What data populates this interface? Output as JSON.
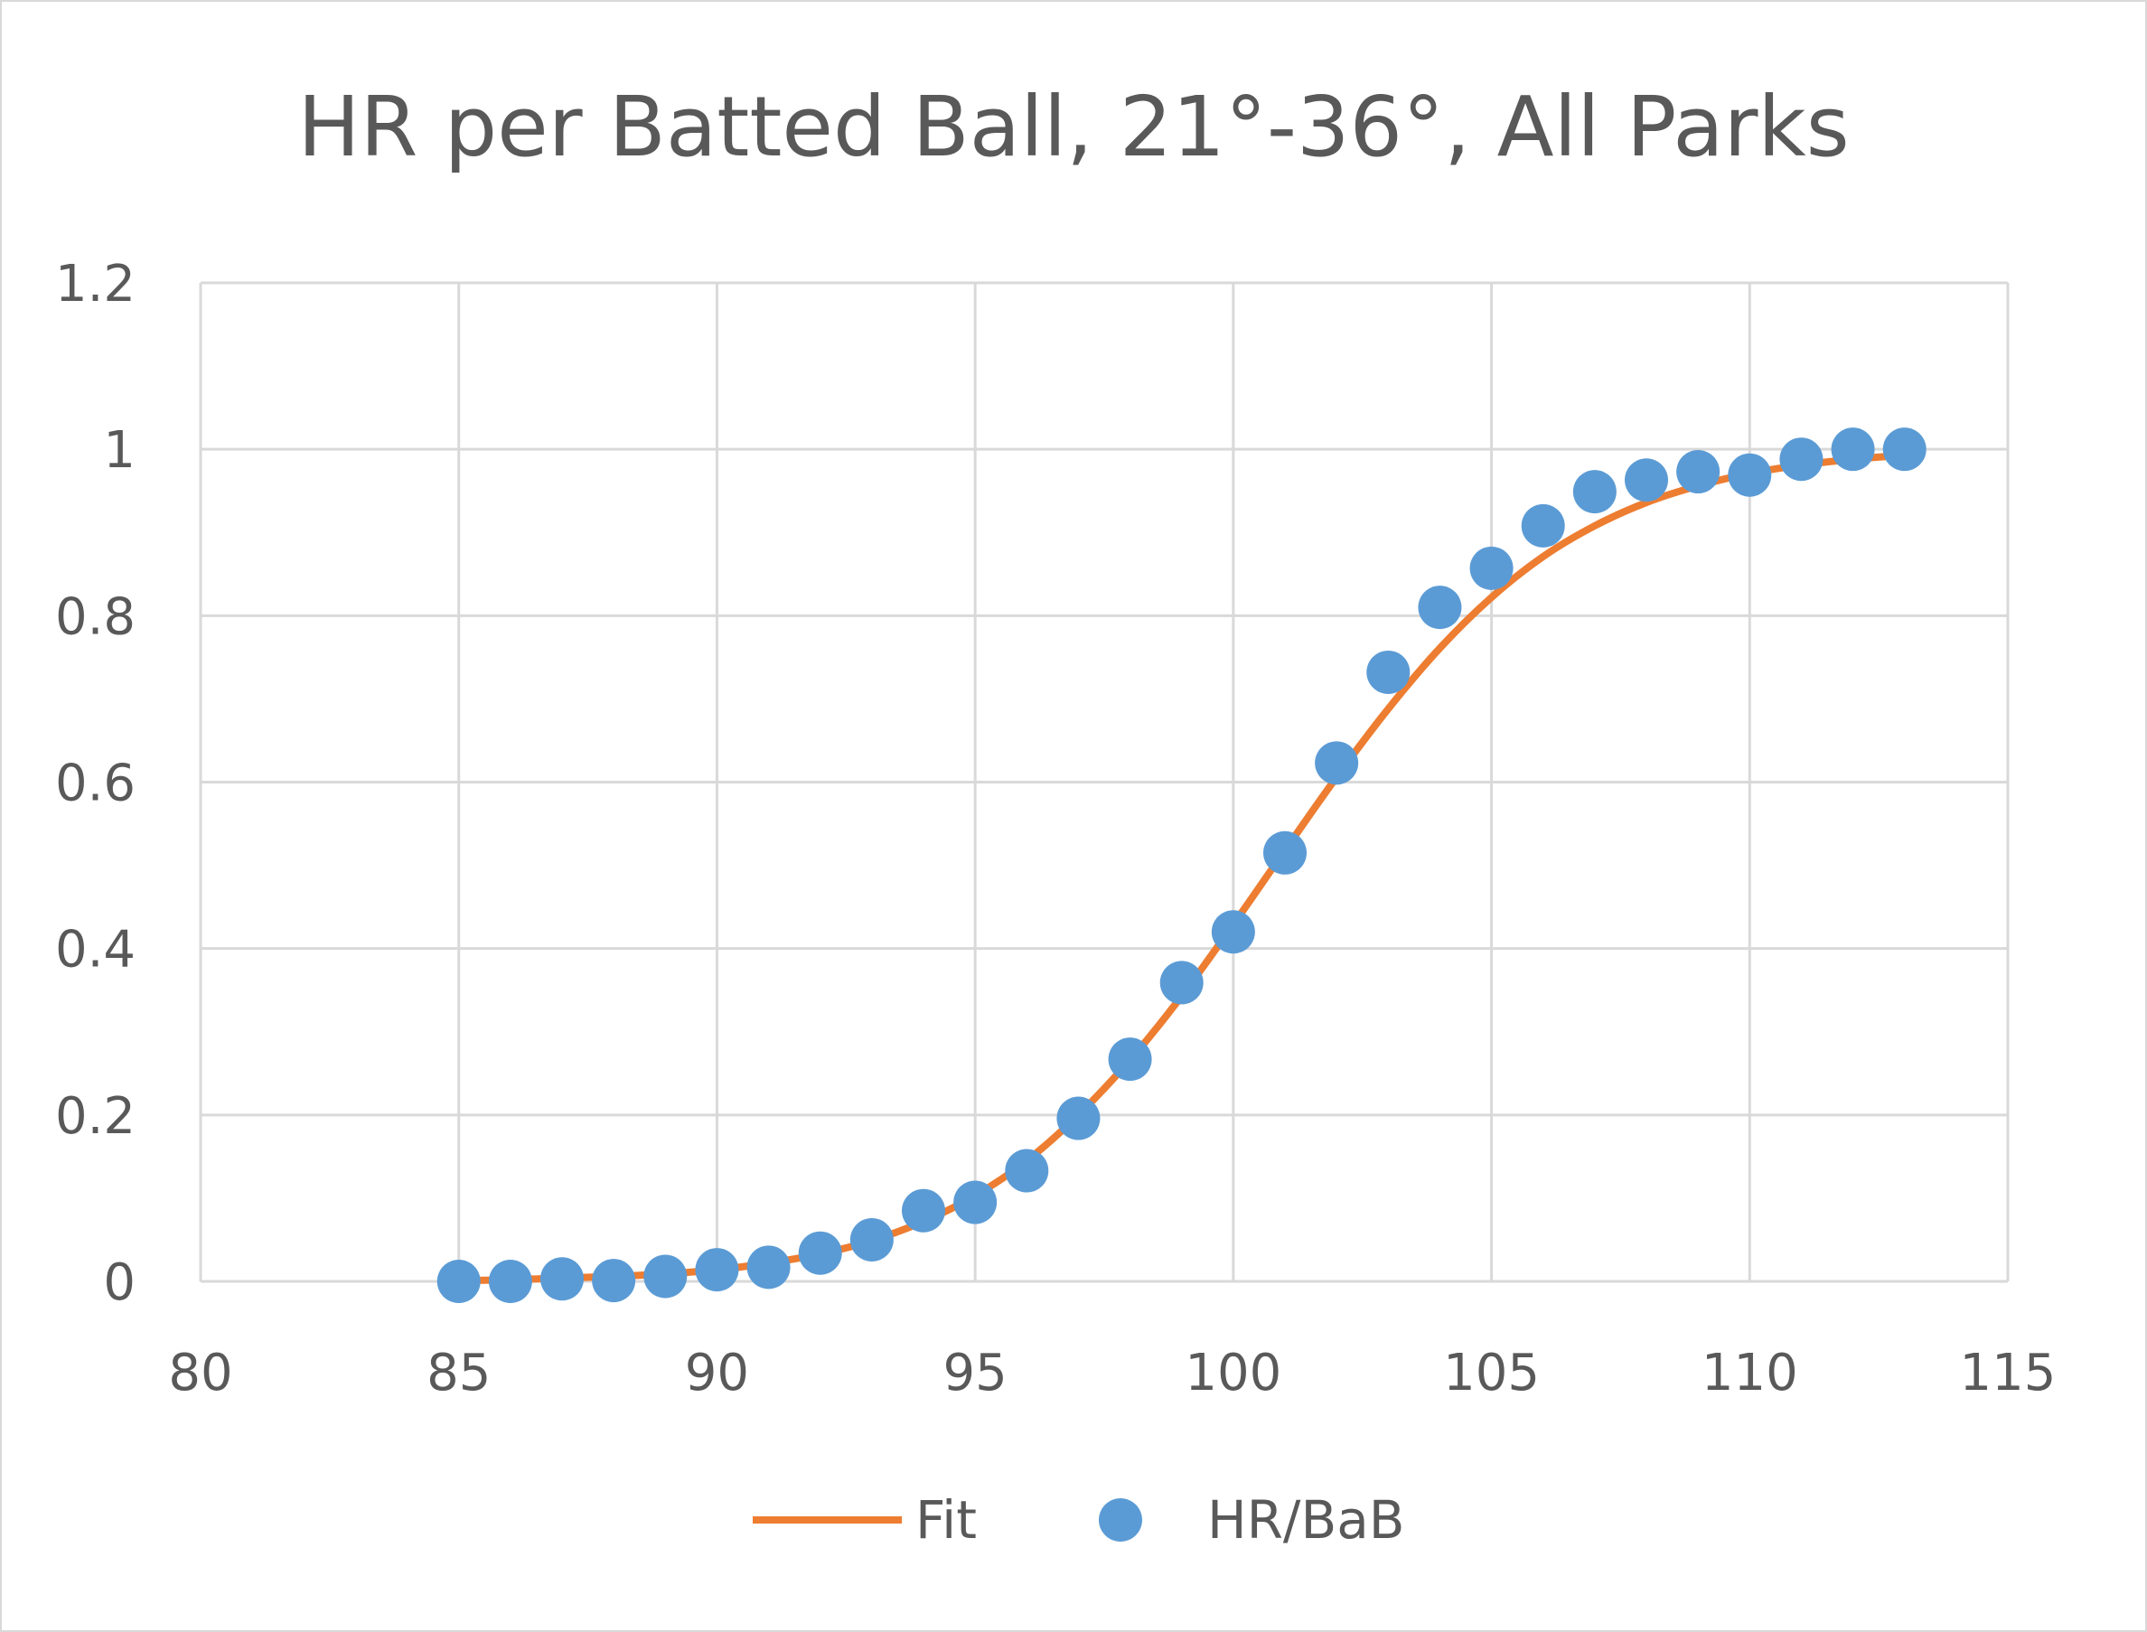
{
  "chart_data": {
    "type": "scatter",
    "title": "HR per Batted Ball, 21°-36°, All Parks",
    "xlabel": "",
    "ylabel": "",
    "xlim": [
      80,
      115
    ],
    "ylim": [
      0,
      1.2
    ],
    "x_ticks": [
      80,
      85,
      90,
      95,
      100,
      105,
      110,
      115
    ],
    "y_ticks": [
      0,
      0.2,
      0.4,
      0.6,
      0.8,
      1,
      1.2
    ],
    "x_tick_labels": [
      "80",
      "85",
      "90",
      "95",
      "100",
      "105",
      "110",
      "115"
    ],
    "y_tick_labels": [
      "0",
      "0.2",
      "0.4",
      "0.6",
      "0.8",
      "1",
      "1.2"
    ],
    "grid": true,
    "legend_position": "bottom",
    "series": [
      {
        "name": "Fit",
        "kind": "line",
        "color": "#ed7d31",
        "x": [
          85,
          86,
          87,
          88,
          89,
          90,
          91,
          92,
          93,
          94,
          95,
          96,
          97,
          98,
          99,
          100,
          101,
          102,
          103,
          104,
          105,
          106,
          107,
          108,
          109,
          110,
          111,
          112,
          113
        ],
        "y": [
          0.001,
          0.002,
          0.004,
          0.006,
          0.009,
          0.014,
          0.022,
          0.033,
          0.049,
          0.072,
          0.103,
          0.145,
          0.2,
          0.266,
          0.343,
          0.429,
          0.518,
          0.606,
          0.688,
          0.761,
          0.822,
          0.871,
          0.908,
          0.936,
          0.956,
          0.971,
          0.981,
          0.988,
          0.993
        ]
      },
      {
        "name": "HR/BaB",
        "kind": "scatter",
        "color": "#5b9bd5",
        "x": [
          85,
          86,
          87,
          88,
          89,
          90,
          91,
          92,
          93,
          94,
          95,
          96,
          97,
          98,
          99,
          100,
          101,
          102,
          103,
          104,
          105,
          106,
          107,
          108,
          109,
          110,
          111,
          112,
          113
        ],
        "y": [
          0.0,
          0.0,
          0.003,
          0.001,
          0.006,
          0.014,
          0.017,
          0.034,
          0.05,
          0.085,
          0.095,
          0.133,
          0.196,
          0.267,
          0.359,
          0.42,
          0.515,
          0.623,
          0.732,
          0.81,
          0.857,
          0.908,
          0.949,
          0.963,
          0.973,
          0.969,
          0.988,
          1.0,
          1.0
        ]
      }
    ]
  }
}
